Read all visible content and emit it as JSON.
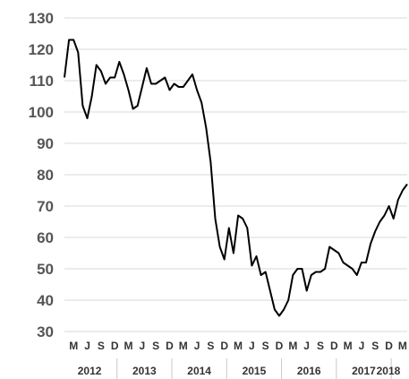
{
  "chart_data": {
    "type": "line",
    "title": "",
    "xlabel": "",
    "ylabel": "",
    "ylim": [
      30,
      130
    ],
    "yticks": [
      30,
      40,
      50,
      60,
      70,
      80,
      90,
      100,
      110,
      120,
      130
    ],
    "grid": true,
    "legend": "none",
    "line_color": "#000000",
    "month_labels": [
      "M",
      "J",
      "S",
      "D",
      "M",
      "J",
      "S",
      "D",
      "M",
      "J",
      "S",
      "D",
      "M",
      "J",
      "S",
      "D",
      "M",
      "J",
      "S",
      "D",
      "M",
      "J",
      "S",
      "D",
      "M"
    ],
    "year_labels": [
      "2012",
      "2013",
      "2014",
      "2015",
      "2016",
      "2017",
      "2018"
    ],
    "x": [
      "2012-01",
      "2012-02",
      "2012-03",
      "2012-04",
      "2012-05",
      "2012-06",
      "2012-07",
      "2012-08",
      "2012-09",
      "2012-10",
      "2012-11",
      "2012-12",
      "2013-01",
      "2013-02",
      "2013-03",
      "2013-04",
      "2013-05",
      "2013-06",
      "2013-07",
      "2013-08",
      "2013-09",
      "2013-10",
      "2013-11",
      "2013-12",
      "2014-01",
      "2014-02",
      "2014-03",
      "2014-04",
      "2014-05",
      "2014-06",
      "2014-07",
      "2014-08",
      "2014-09",
      "2014-10",
      "2014-11",
      "2014-12",
      "2015-01",
      "2015-02",
      "2015-03",
      "2015-04",
      "2015-05",
      "2015-06",
      "2015-07",
      "2015-08",
      "2015-09",
      "2015-10",
      "2015-11",
      "2015-12",
      "2016-01",
      "2016-02",
      "2016-03",
      "2016-04",
      "2016-05",
      "2016-06",
      "2016-07",
      "2016-08",
      "2016-09",
      "2016-10",
      "2016-11",
      "2016-12",
      "2017-01",
      "2017-02",
      "2017-03",
      "2017-04",
      "2017-05",
      "2017-06",
      "2017-07",
      "2017-08",
      "2017-09",
      "2017-10",
      "2017-11",
      "2017-12",
      "2018-01",
      "2018-02",
      "2018-03",
      "2018-04"
    ],
    "values": [
      111,
      123,
      123,
      119,
      102,
      98,
      105,
      115,
      113,
      109,
      111,
      111,
      116,
      112,
      107,
      101,
      102,
      108,
      114,
      109,
      109,
      110,
      111,
      107,
      109,
      108,
      108,
      110,
      112,
      107,
      103,
      95,
      84,
      66,
      57,
      53,
      63,
      55,
      67,
      66,
      63,
      51,
      54,
      48,
      49,
      43,
      37,
      35,
      37,
      40,
      48,
      50,
      50,
      43,
      48,
      49,
      49,
      50,
      57,
      56,
      55,
      52,
      51,
      50,
      48,
      52,
      52,
      58,
      62,
      65,
      67,
      70,
      66,
      72,
      75,
      77
    ]
  }
}
